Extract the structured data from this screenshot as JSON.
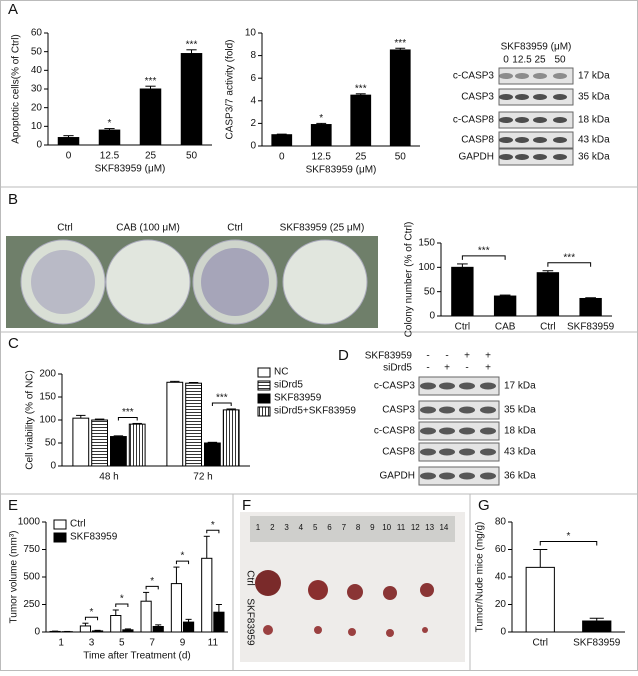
{
  "panels": [
    "A",
    "B",
    "C",
    "D",
    "E",
    "F",
    "G"
  ],
  "chart_data": [
    {
      "type": "bar",
      "y_label": "Apoptotic cells(% of Ctrl)",
      "x_label": "SKF83959 (μM)",
      "categories": [
        "0",
        "12.5",
        "25",
        "50"
      ],
      "values": [
        4,
        8,
        30,
        49
      ],
      "errors": [
        1,
        0.8,
        1.5,
        2
      ],
      "significance": [
        null,
        "*",
        "***",
        "***"
      ],
      "color": "#000000",
      "ylim": [
        0,
        60
      ],
      "yticks": [
        0,
        10,
        20,
        30,
        40,
        50,
        60
      ]
    },
    {
      "type": "bar",
      "y_label": "CASP3/7 activity (fold)",
      "x_label": "SKF83959 (μM)",
      "categories": [
        "0",
        "12.5",
        "25",
        "50"
      ],
      "values": [
        1,
        1.9,
        4.5,
        8.5
      ],
      "errors": [
        0.05,
        0.1,
        0.12,
        0.15
      ],
      "significance": [
        null,
        "*",
        "***",
        "***"
      ],
      "color": "#000000",
      "ylim": [
        0,
        10
      ],
      "yticks": [
        0,
        2,
        4,
        6,
        8,
        10
      ]
    },
    {
      "type": "bar",
      "y_label": "Colony number (% of Ctrl)",
      "categories": [
        "Ctrl",
        "CAB",
        "Ctrl",
        "SKF83959"
      ],
      "values": [
        100,
        41,
        89,
        36
      ],
      "errors": [
        7,
        2,
        4,
        1.5
      ],
      "comparisons": [
        {
          "between": [
            0,
            1
          ],
          "label": "***"
        },
        {
          "between": [
            2,
            3
          ],
          "label": "***"
        }
      ],
      "color": "#000000",
      "ylim": [
        0,
        150
      ],
      "yticks": [
        0,
        50,
        100,
        150
      ]
    },
    {
      "type": "grouped-bar",
      "y_label": "Cell viability (% of NC)",
      "categories": [
        "48 h",
        "72 h"
      ],
      "series": [
        {
          "name": "NC",
          "color": "#000000",
          "fill": "#ffffff",
          "values": [
            104,
            182
          ],
          "errors": [
            6,
            2
          ]
        },
        {
          "name": "siDrd5",
          "color": "#000000",
          "hatch": "horizontal",
          "values": [
            100,
            180
          ],
          "errors": [
            2,
            1.5
          ]
        },
        {
          "name": "SKF83959",
          "color": "#000000",
          "fill": "#000000",
          "values": [
            64,
            50
          ],
          "errors": [
            1.5,
            1.5
          ]
        },
        {
          "name": "siDrd5+SKF83959",
          "color": "#000000",
          "hatch": "vertical",
          "values": [
            91,
            122
          ],
          "errors": [
            1.5,
            2
          ]
        }
      ],
      "significance": [
        "***",
        "***"
      ],
      "significance_between": [
        2,
        3
      ],
      "ylim": [
        0,
        200
      ],
      "yticks": [
        0,
        50,
        100,
        150,
        200
      ]
    },
    {
      "type": "grouped-bar",
      "y_label": "Tumor volume (mm³)",
      "x_label": "Time after Treatment (d)",
      "categories": [
        "1",
        "3",
        "5",
        "7",
        "9",
        "11"
      ],
      "series": [
        {
          "name": "Ctrl",
          "color": "#000000",
          "fill": "#ffffff",
          "values": [
            5,
            55,
            150,
            280,
            440,
            670
          ],
          "errors": [
            3,
            25,
            50,
            80,
            150,
            200
          ]
        },
        {
          "name": "SKF83959",
          "color": "#000000",
          "fill": "#000000",
          "values": [
            3,
            10,
            20,
            50,
            90,
            180
          ],
          "errors": [
            2,
            5,
            8,
            15,
            25,
            70
          ]
        }
      ],
      "significance": [
        null,
        "*",
        "*",
        "*",
        "*",
        "*"
      ],
      "significance_between": [
        0,
        1
      ],
      "ylim": [
        0,
        1000
      ],
      "yticks": [
        0,
        250,
        500,
        750,
        1000
      ]
    },
    {
      "type": "bar",
      "y_label": "Tumor/Nude mice (mg/g)",
      "categories": [
        "Ctrl",
        "SKF83959"
      ],
      "values": [
        47,
        8
      ],
      "errors": [
        13,
        2
      ],
      "comparisons": [
        {
          "between": [
            0,
            1
          ],
          "label": "*"
        }
      ],
      "colors": [
        "#ffffff",
        "#000000"
      ],
      "ylim": [
        0,
        80
      ],
      "yticks": [
        0,
        20,
        40,
        60,
        80
      ]
    }
  ],
  "blot_a": {
    "header": "SKF83959 (μM)",
    "lanes": [
      "0",
      "12.5",
      "25",
      "50"
    ],
    "proteins": [
      {
        "name": "c-CASP3",
        "size": "17 kDa"
      },
      {
        "name": "CASP3",
        "size": "35 kDa"
      },
      {
        "name": "c-CASP8",
        "size": "18 kDa"
      },
      {
        "name": "CASP8",
        "size": "43 kDa"
      },
      {
        "name": "GAPDH",
        "size": "36 kDa"
      }
    ]
  },
  "blot_d": {
    "treatments": [
      {
        "name": "SKF83959",
        "lanes": [
          "-",
          "-",
          "+",
          "+"
        ]
      },
      {
        "name": "siDrd5",
        "lanes": [
          "-",
          "+",
          "-",
          "+"
        ]
      }
    ],
    "proteins": [
      {
        "name": "c-CASP3",
        "size": "17 kDa"
      },
      {
        "name": "CASP3",
        "size": "35 kDa"
      },
      {
        "name": "c-CASP8",
        "size": "18 kDa"
      },
      {
        "name": "CASP8",
        "size": "43 kDa"
      },
      {
        "name": "GAPDH",
        "size": "36 kDa"
      }
    ]
  },
  "photo_b": {
    "labels": [
      "Ctrl",
      "CAB (100 μM)",
      "Ctrl",
      "SKF83959 (25 μM)"
    ]
  },
  "photo_f": {
    "ruler": [
      "1",
      "2",
      "3",
      "4",
      "5",
      "6",
      "7",
      "8",
      "9",
      "10",
      "11",
      "12",
      "13",
      "14"
    ],
    "labels": [
      "Ctrl",
      "SKF83959"
    ]
  }
}
